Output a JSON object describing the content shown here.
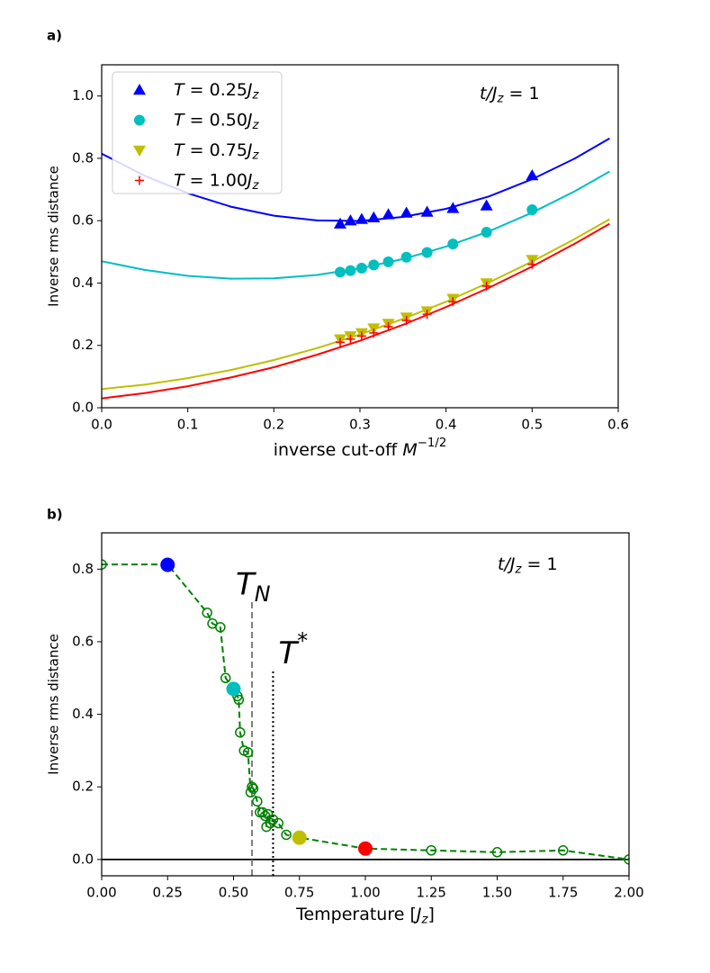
{
  "chart_data": [
    {
      "type": "scatter",
      "panel_label": "a)",
      "xlabel": [
        "inverse cut-off ",
        "M",
        "−1/2"
      ],
      "ylabel": "Inverse rms distance",
      "annotation": [
        "t/J",
        "z",
        " = 1"
      ],
      "legend": "upper left",
      "xlim": [
        0,
        0.6
      ],
      "ylim": [
        0,
        1.1
      ],
      "xticks": [
        {
          "value": 0,
          "label": "0.0"
        },
        0.1,
        0.2,
        0.3,
        0.4,
        0.5,
        0.6
      ],
      "yticks": [
        {
          "value": 0,
          "label": "0.0"
        },
        0.2,
        0.4,
        0.6,
        0.8,
        {
          "value": 1,
          "label": "1.0"
        }
      ],
      "x": [
        0.277,
        0.289,
        0.302,
        0.316,
        0.333,
        0.354,
        0.378,
        0.408,
        0.447,
        0.5
      ],
      "series": [
        {
          "name": [
            "T",
            " = 0.25",
            "J",
            "z"
          ],
          "color": "#0000ff",
          "marker": "triangle-up",
          "values": [
            0.59,
            0.6,
            0.605,
            0.61,
            0.62,
            0.625,
            0.628,
            0.64,
            0.648,
            0.745
          ]
        },
        {
          "name": [
            "T",
            " = 0.50",
            "J",
            "z"
          ],
          "color": "#00bfbf",
          "marker": "circle",
          "values": [
            0.435,
            0.44,
            0.448,
            0.458,
            0.468,
            0.483,
            0.498,
            0.525,
            0.563,
            0.635
          ]
        },
        {
          "name": [
            "T",
            " = 0.75",
            "J",
            "z"
          ],
          "color": "#bfbf00",
          "marker": "triangle-down",
          "values": [
            0.22,
            0.23,
            0.24,
            0.255,
            0.27,
            0.29,
            0.31,
            0.35,
            0.4,
            0.475
          ]
        },
        {
          "name": [
            "T",
            " = 1.00",
            "J",
            "z"
          ],
          "color": "#ff0000",
          "marker": "plus",
          "values": [
            0.21,
            0.22,
            0.23,
            0.24,
            0.26,
            0.28,
            0.3,
            0.34,
            0.39,
            0.46
          ]
        }
      ],
      "fit_x": [
        0,
        0.05,
        0.1,
        0.15,
        0.2,
        0.25,
        0.3,
        0.35,
        0.4,
        0.45,
        0.5,
        0.55,
        0.59
      ],
      "fits": [
        {
          "color": "#0000ff",
          "values": [
            0.815,
            0.744,
            0.688,
            0.645,
            0.616,
            0.601,
            0.599,
            0.612,
            0.638,
            0.678,
            0.733,
            0.8,
            0.864
          ]
        },
        {
          "color": "#00bfbf",
          "values": [
            0.47,
            0.442,
            0.423,
            0.414,
            0.415,
            0.426,
            0.447,
            0.477,
            0.517,
            0.566,
            0.626,
            0.695,
            0.758
          ]
        },
        {
          "color": "#bfbf00",
          "values": [
            0.06,
            0.074,
            0.095,
            0.121,
            0.153,
            0.191,
            0.235,
            0.285,
            0.34,
            0.402,
            0.469,
            0.542,
            0.605
          ]
        },
        {
          "color": "#ff0000",
          "values": [
            0.03,
            0.047,
            0.069,
            0.097,
            0.13,
            0.17,
            0.215,
            0.266,
            0.323,
            0.385,
            0.453,
            0.527,
            0.59
          ]
        }
      ]
    },
    {
      "type": "line",
      "panel_label": "b)",
      "xlabel": [
        "Temperature [",
        "J",
        "z",
        "]"
      ],
      "ylabel": "Inverse rms distance",
      "annotation": [
        "t/J",
        "z",
        " = 1"
      ],
      "xlim": [
        0,
        2
      ],
      "ylim": [
        -0.045,
        0.9
      ],
      "xticks": [
        {
          "value": 0,
          "label": "0.00"
        },
        {
          "value": 0.25,
          "label": "0.25"
        },
        {
          "value": 0.5,
          "label": "0.50"
        },
        {
          "value": 0.75,
          "label": "0.75"
        },
        {
          "value": 1,
          "label": "1.00"
        },
        {
          "value": 1.25,
          "label": "1.25"
        },
        {
          "value": 1.5,
          "label": "1.50"
        },
        {
          "value": 1.75,
          "label": "1.75"
        },
        {
          "value": 2,
          "label": "2.00"
        }
      ],
      "yticks": [
        {
          "value": 0,
          "label": "0.0"
        },
        0.2,
        0.4,
        0.6,
        0.8
      ],
      "series": [
        {
          "color": "#008000",
          "marker": "open-circle",
          "linestyle": "dashed",
          "x": [
            0,
            0.25,
            0.4,
            0.42,
            0.45,
            0.47,
            0.5,
            0.515,
            0.52,
            0.525,
            0.54,
            0.555,
            0.565,
            0.57,
            0.575,
            0.59,
            0.6,
            0.61,
            0.62,
            0.625,
            0.63,
            0.64,
            0.65,
            0.67,
            0.7,
            0.75,
            1,
            1.25,
            1.5,
            1.75,
            2
          ],
          "values": [
            0.813,
            0.813,
            0.68,
            0.65,
            0.64,
            0.5,
            0.47,
            0.45,
            0.44,
            0.35,
            0.3,
            0.295,
            0.185,
            0.2,
            0.195,
            0.16,
            0.13,
            0.13,
            0.12,
            0.09,
            0.125,
            0.1,
            0.11,
            0.1,
            0.068,
            0.06,
            0.03,
            0.025,
            0.02,
            0.025,
            0
          ]
        }
      ],
      "highlights": {
        "x": [
          0.25,
          0.5,
          0.75,
          1
        ],
        "values": [
          0.812,
          0.47,
          0.06,
          0.03
        ],
        "colors": [
          "#0000ff",
          "#00bfbf",
          "#bfbf00",
          "#ff0000"
        ]
      },
      "hlines": [
        {
          "y": 0,
          "color": "#000000"
        }
      ],
      "vlines": [
        {
          "x": 0.57,
          "top": 0.71,
          "color": "#808080",
          "style": "dashed",
          "label": [
            "T",
            "N"
          ]
        },
        {
          "x": 0.65,
          "top": 0.52,
          "color": "#000000",
          "style": "dotted",
          "label": [
            "T",
            "*"
          ]
        }
      ]
    }
  ]
}
